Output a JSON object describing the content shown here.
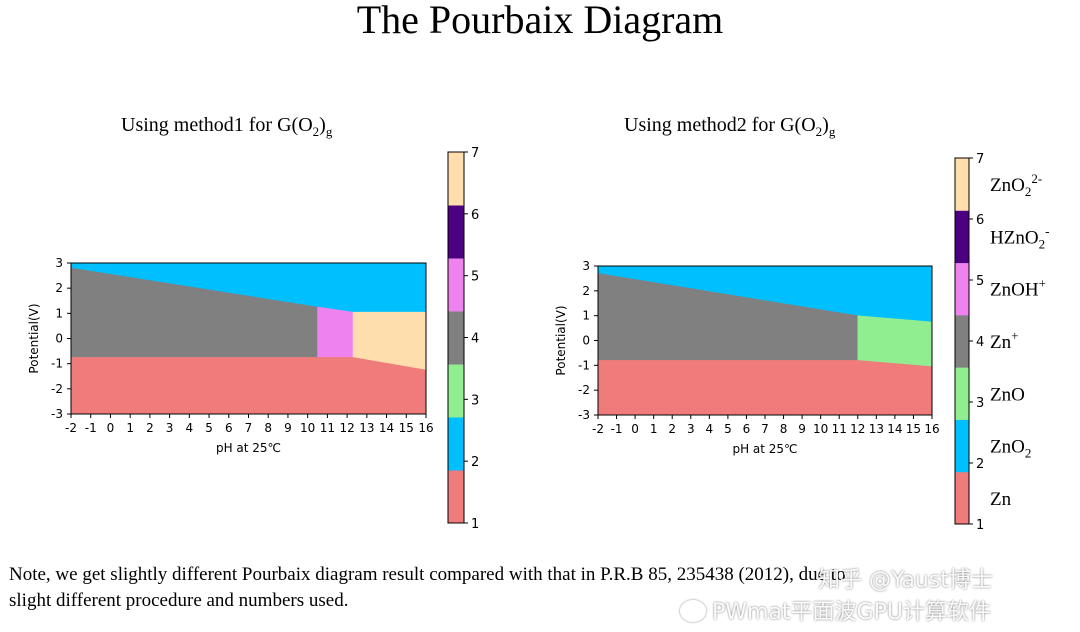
{
  "title": "The Pourbaix Diagram",
  "colors": {
    "Zn": "#ef7b7b",
    "ZnO2": "#00bfff",
    "ZnO": "#90ee90",
    "Zn+": "#808080",
    "ZnOH+": "#ee82ee",
    "HZnO2-": "#4b0082",
    "ZnO2 2-": "#ffdead"
  },
  "chart_data": [
    {
      "type": "heatmap",
      "subtitle": "Using method1 for G(O",
      "subtitle_sub": "2",
      "subtitle_end": ")",
      "subtitle_sub2": "g",
      "xlabel": "pH at 25℃",
      "ylabel": "Potential(V)",
      "xlim": [
        -2,
        16
      ],
      "ylim": [
        -3,
        3
      ],
      "x_ticks": [
        "-2",
        "-1",
        "0",
        "1",
        "2",
        "3",
        "4",
        "5",
        "6",
        "7",
        "8",
        "9",
        "10",
        "11",
        "12",
        "13",
        "14",
        "15",
        "16"
      ],
      "y_ticks": [
        "3",
        "2",
        "1",
        "0",
        "-1",
        "-2",
        "-3"
      ],
      "regions": [
        {
          "species": "ZnO2",
          "value": 2,
          "polygon": [
            [
              -2,
              3
            ],
            [
              16,
              3
            ],
            [
              16,
              1.05
            ],
            [
              12.3,
              1.05
            ],
            [
              10.5,
              1.25
            ],
            [
              -2,
              2.8
            ]
          ]
        },
        {
          "species": "Zn+",
          "value": 4,
          "polygon": [
            [
              -2,
              2.8
            ],
            [
              10.5,
              1.25
            ],
            [
              10.5,
              -0.75
            ],
            [
              -2,
              -0.75
            ]
          ]
        },
        {
          "species": "ZnOH+",
          "value": 5,
          "polygon": [
            [
              10.5,
              1.25
            ],
            [
              12.3,
              1.05
            ],
            [
              12.3,
              -0.75
            ],
            [
              10.5,
              -0.75
            ]
          ]
        },
        {
          "species": "ZnO2 2-",
          "value": 7,
          "polygon": [
            [
              12.3,
              1.05
            ],
            [
              16,
              1.05
            ],
            [
              16,
              -1.25
            ],
            [
              12.3,
              -0.75
            ]
          ]
        },
        {
          "species": "Zn",
          "value": 1,
          "polygon": [
            [
              -2,
              -0.75
            ],
            [
              12.3,
              -0.75
            ],
            [
              16,
              -1.25
            ],
            [
              16,
              -3
            ],
            [
              -2,
              -3
            ]
          ]
        }
      ],
      "colorbar": {
        "min": 1,
        "max": 7,
        "ticks": [
          "1",
          "2",
          "3",
          "4",
          "5",
          "6",
          "7"
        ],
        "labels": []
      }
    },
    {
      "type": "heatmap",
      "subtitle": "Using method2 for G(O",
      "subtitle_sub": "2",
      "subtitle_end": ")",
      "subtitle_sub2": "g",
      "xlabel": "pH at 25℃",
      "ylabel": "Potential(V)",
      "xlim": [
        -2,
        16
      ],
      "ylim": [
        -3,
        3
      ],
      "x_ticks": [
        "-2",
        "-1",
        "0",
        "1",
        "2",
        "3",
        "4",
        "5",
        "6",
        "7",
        "8",
        "9",
        "10",
        "11",
        "12",
        "13",
        "14",
        "15",
        "16"
      ],
      "y_ticks": [
        "3",
        "2",
        "1",
        "0",
        "-1",
        "-2",
        "-3"
      ],
      "regions": [
        {
          "species": "ZnO2",
          "value": 2,
          "polygon": [
            [
              -2,
              3
            ],
            [
              16,
              3
            ],
            [
              16,
              0.75
            ],
            [
              12,
              1.0
            ],
            [
              -2,
              2.7
            ]
          ]
        },
        {
          "species": "Zn+",
          "value": 4,
          "polygon": [
            [
              -2,
              2.7
            ],
            [
              12,
              1.0
            ],
            [
              12,
              -0.8
            ],
            [
              -2,
              -0.8
            ]
          ]
        },
        {
          "species": "ZnO",
          "value": 3,
          "polygon": [
            [
              12,
              1.0
            ],
            [
              16,
              0.75
            ],
            [
              16,
              -1.05
            ],
            [
              12,
              -0.8
            ]
          ]
        },
        {
          "species": "Zn",
          "value": 1,
          "polygon": [
            [
              -2,
              -0.8
            ],
            [
              12,
              -0.8
            ],
            [
              16,
              -1.05
            ],
            [
              16,
              -3
            ],
            [
              -2,
              -3
            ]
          ]
        }
      ],
      "colorbar": {
        "min": 1,
        "max": 7,
        "ticks": [
          "1",
          "2",
          "3",
          "4",
          "5",
          "6",
          "7"
        ],
        "labels": [
          {
            "base": "Zn",
            "sub": "",
            "sup": ""
          },
          {
            "base": "ZnO",
            "sub": "2",
            "sup": ""
          },
          {
            "base": "ZnO",
            "sub": "",
            "sup": ""
          },
          {
            "base": "Zn",
            "sub": "",
            "sup": "+"
          },
          {
            "base": "ZnOH",
            "sub": "",
            "sup": "+"
          },
          {
            "base": "HZnO",
            "sub": "2",
            "sup": "-"
          },
          {
            "base": "ZnO",
            "sub": "2",
            "sup": "2-"
          }
        ]
      }
    }
  ],
  "note": {
    "line1": "Note, we get slightly different Pourbaix diagram result compared with that in  P.R.B 85, 235438 (2012), due to",
    "line2": "slight different procedure and numbers used."
  },
  "watermark": {
    "line1": "知乎 @Yaust博士",
    "line2": "PWmat平面波GPU计算软件"
  }
}
